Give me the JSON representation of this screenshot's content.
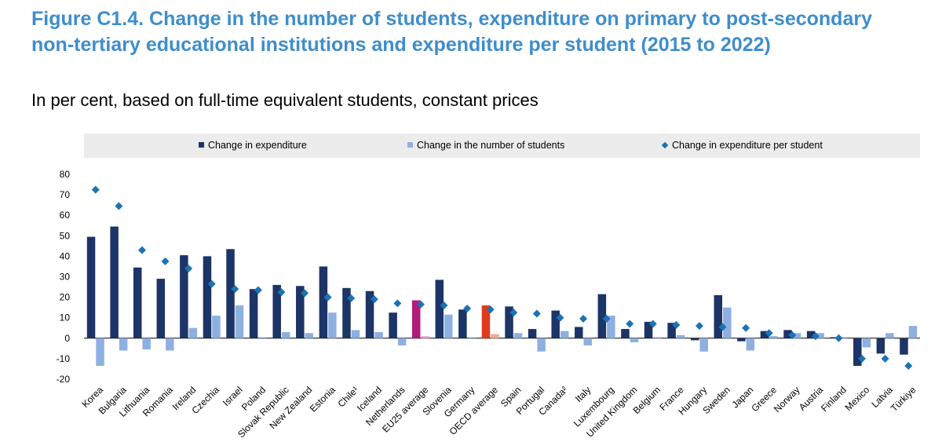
{
  "header": {
    "title": "Figure C1.4. Change in the number of students, expenditure on primary to post-secondary non-tertiary educational institutions and expenditure per student (2015 to 2022)",
    "subtitle": "In per cent, based on full-time equivalent students, constant prices"
  },
  "colors": {
    "expenditure": "#1c3466",
    "students": "#8eb0e0",
    "per_student": "#1a73b5",
    "eu_expenditure": "#b21c7b",
    "eu_students": "#e6a7cc",
    "oecd_expenditure": "#e03a1e",
    "oecd_students": "#f2a98f",
    "legend_bg": "#ececec",
    "title": "#3f8dcc"
  },
  "chart_data": {
    "type": "bar",
    "title": "Figure C1.4. Change in the number of students, expenditure on primary to post-secondary non-tertiary educational institutions and expenditure per student (2015 to 2022)",
    "subtitle": "In per cent, based on full-time equivalent students, constant prices",
    "ylim": [
      -20,
      80
    ],
    "yticks": [
      "80",
      "70",
      "60",
      "50",
      "40",
      "30",
      "20",
      "10",
      "0",
      "-10",
      "-20"
    ],
    "legend_position": "top",
    "categories": [
      "Korea",
      "Bulgaria",
      "Lithuania",
      "Romania",
      "Ireland",
      "Czechia",
      "Israel",
      "Poland",
      "Slovak Republic",
      "New Zealand",
      "Estonia",
      "Chile¹",
      "Iceland",
      "Netherlands",
      "EU25 average",
      "Slovenia",
      "Germany",
      "OECD average",
      "Spain",
      "Portugal",
      "Canada²",
      "Italy",
      "Luxembourg",
      "United Kingdom",
      "Belgium",
      "France",
      "Hungary",
      "Sweden",
      "Japan",
      "Greece",
      "Norway",
      "Austria",
      "Finland",
      "Mexico",
      "Latvia",
      "Türkiye"
    ],
    "highlight": {
      "EU25 average": "eu",
      "OECD average": "oecd"
    },
    "series": [
      {
        "name": "Change in expenditure",
        "kind": "bar",
        "values": [
          49.5,
          54.5,
          34.5,
          29,
          40.5,
          40,
          43.5,
          24,
          26,
          25.5,
          35,
          24.5,
          23,
          12.5,
          18.5,
          28.5,
          14,
          16,
          15.5,
          4.5,
          13.5,
          5.5,
          21.5,
          4.5,
          8,
          7.5,
          -1,
          21,
          -1.5,
          3.5,
          4,
          3.5,
          0.5,
          -13.5,
          -7.5,
          -8
        ]
      },
      {
        "name": "Change in the number of students",
        "kind": "bar",
        "values": [
          -13.5,
          -6,
          -5.5,
          -6,
          5,
          11,
          16,
          0,
          3,
          2.5,
          12.5,
          4,
          3,
          -3.5,
          1,
          11.5,
          0,
          2,
          2.5,
          -6.5,
          3.5,
          -3.5,
          11,
          -2,
          0.5,
          1.5,
          -6.5,
          15,
          -6,
          1,
          2.5,
          2.5,
          0.5,
          -4.5,
          2.5,
          6
        ]
      },
      {
        "name": "Change in expenditure per student",
        "kind": "marker",
        "values": [
          72.5,
          64.5,
          43,
          37.5,
          34,
          26.5,
          24,
          23.5,
          22.5,
          22,
          20,
          19.5,
          19,
          17,
          16.5,
          16,
          14.5,
          14,
          12.5,
          12,
          10,
          9.5,
          9.5,
          7,
          7,
          6.5,
          6,
          5.5,
          5,
          2.5,
          1.5,
          1,
          0,
          -10,
          -10,
          -13.5
        ]
      }
    ]
  }
}
